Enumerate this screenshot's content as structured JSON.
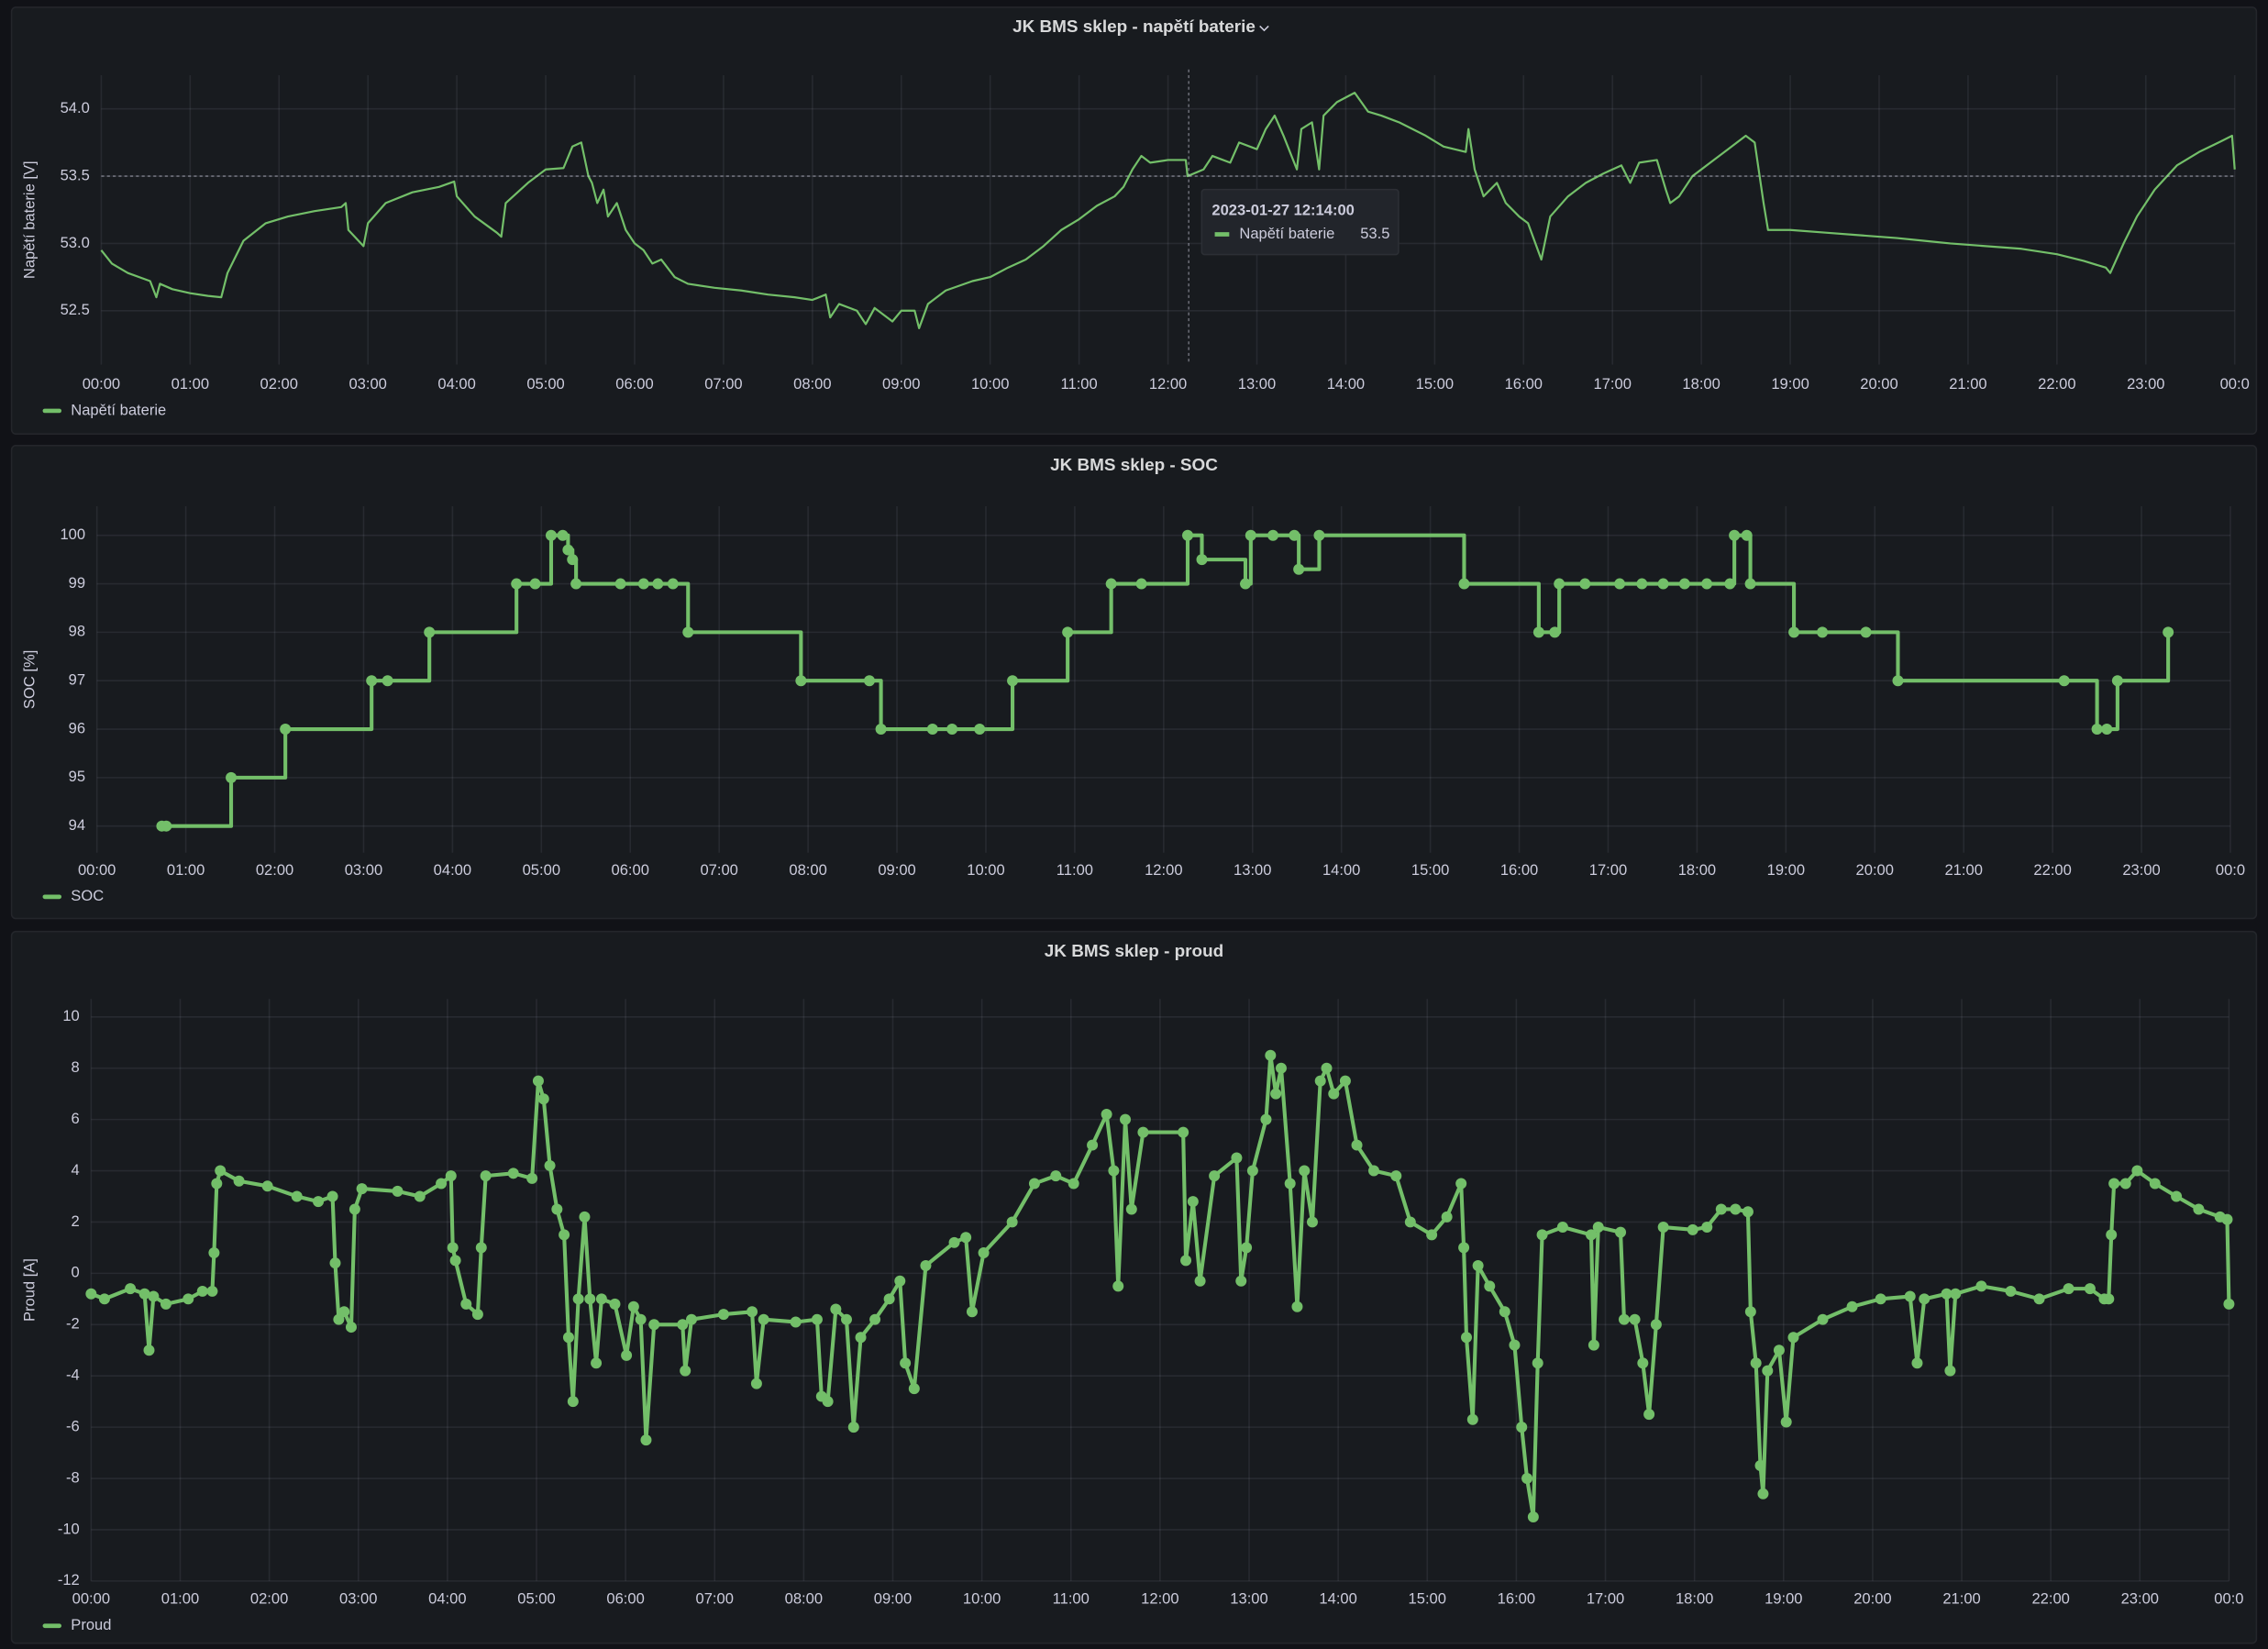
{
  "chart_data": [
    {
      "type": "line",
      "title": "JK BMS sklep - napětí baterie",
      "y_label": "Napětí baterie [V]",
      "line_interpolation": "linear",
      "points": false,
      "grid": true,
      "legend": "bottom-left",
      "x": [
        0,
        0.12,
        0.3,
        0.55,
        0.62,
        0.66,
        0.8,
        1,
        1.2,
        1.35,
        1.42,
        1.6,
        1.85,
        2.1,
        2.4,
        2.7,
        2.75,
        2.78,
        2.95,
        3,
        3.2,
        3.5,
        3.8,
        3.97,
        4,
        4.2,
        4.45,
        4.5,
        4.55,
        4.8,
        5,
        5.2,
        5.3,
        5.4,
        5.48,
        5.52,
        5.58,
        5.65,
        5.7,
        5.8,
        5.9,
        6,
        6.1,
        6.2,
        6.3,
        6.45,
        6.6,
        6.9,
        7.2,
        7.5,
        7.8,
        8,
        8.15,
        8.2,
        8.3,
        8.5,
        8.6,
        8.7,
        8.9,
        9,
        9.15,
        9.2,
        9.3,
        9.5,
        9.8,
        10,
        10.2,
        10.4,
        10.6,
        10.8,
        11,
        11.2,
        11.4,
        11.5,
        11.6,
        11.7,
        11.8,
        12,
        12.2,
        12.22,
        12.4,
        12.5,
        12.7,
        12.8,
        13,
        13.1,
        13.2,
        13.3,
        13.45,
        13.5,
        13.62,
        13.7,
        13.75,
        13.9,
        14.1,
        14.25,
        14.4,
        14.6,
        14.9,
        15.1,
        15.35,
        15.38,
        15.45,
        15.55,
        15.7,
        15.8,
        15.95,
        16.05,
        16.2,
        16.3,
        16.5,
        16.7,
        16.9,
        17.1,
        17.2,
        17.3,
        17.5,
        17.6,
        17.65,
        17.75,
        17.9,
        18.1,
        18.3,
        18.5,
        18.6,
        18.7,
        18.75,
        19,
        19.4,
        19.8,
        20.2,
        20.5,
        20.8,
        21.2,
        21.6,
        22,
        22.3,
        22.55,
        22.6,
        22.75,
        22.9,
        23.1,
        23.35,
        23.6,
        23.85,
        23.97,
        24
      ],
      "series": [
        {
          "name": "Napětí baterie",
          "color": "#73bf69",
          "values": [
            52.95,
            52.85,
            52.78,
            52.72,
            52.6,
            52.7,
            52.66,
            52.63,
            52.61,
            52.6,
            52.78,
            53.02,
            53.15,
            53.2,
            53.24,
            53.27,
            53.3,
            53.1,
            52.98,
            53.15,
            53.3,
            53.38,
            53.42,
            53.46,
            53.35,
            53.2,
            53.08,
            53.05,
            53.3,
            53.45,
            53.55,
            53.56,
            53.72,
            53.75,
            53.5,
            53.45,
            53.3,
            53.4,
            53.2,
            53.3,
            53.1,
            53.0,
            52.95,
            52.85,
            52.88,
            52.75,
            52.7,
            52.67,
            52.65,
            52.62,
            52.6,
            52.58,
            52.62,
            52.45,
            52.55,
            52.5,
            52.4,
            52.52,
            52.42,
            52.5,
            52.5,
            52.37,
            52.55,
            52.65,
            52.72,
            52.75,
            52.82,
            52.88,
            52.98,
            53.1,
            53.18,
            53.28,
            53.35,
            53.42,
            53.55,
            53.65,
            53.6,
            53.62,
            53.62,
            53.5,
            53.55,
            53.65,
            53.6,
            53.75,
            53.7,
            53.85,
            53.95,
            53.8,
            53.55,
            53.85,
            53.9,
            53.55,
            53.95,
            54.05,
            54.12,
            53.98,
            53.95,
            53.9,
            53.8,
            53.72,
            53.68,
            53.85,
            53.55,
            53.35,
            53.45,
            53.3,
            53.2,
            53.15,
            52.88,
            53.2,
            53.35,
            53.45,
            53.52,
            53.58,
            53.45,
            53.6,
            53.62,
            53.4,
            53.3,
            53.35,
            53.5,
            53.6,
            53.7,
            53.8,
            53.75,
            53.3,
            53.1,
            53.1,
            53.08,
            53.06,
            53.04,
            53.02,
            53.0,
            52.98,
            52.96,
            52.92,
            52.87,
            52.82,
            52.78,
            53.0,
            53.2,
            53.4,
            53.58,
            53.68,
            53.76,
            53.8,
            53.55
          ]
        }
      ],
      "xlim": [
        0,
        24
      ],
      "xticks": [
        {
          "value": 0,
          "label": "00:00"
        },
        {
          "value": 1,
          "label": "01:00"
        },
        {
          "value": 2,
          "label": "02:00"
        },
        {
          "value": 3,
          "label": "03:00"
        },
        {
          "value": 4,
          "label": "04:00"
        },
        {
          "value": 5,
          "label": "05:00"
        },
        {
          "value": 6,
          "label": "06:00"
        },
        {
          "value": 7,
          "label": "07:00"
        },
        {
          "value": 8,
          "label": "08:00"
        },
        {
          "value": 9,
          "label": "09:00"
        },
        {
          "value": 10,
          "label": "10:00"
        },
        {
          "value": 11,
          "label": "11:00"
        },
        {
          "value": 12,
          "label": "12:00"
        },
        {
          "value": 13,
          "label": "13:00"
        },
        {
          "value": 14,
          "label": "14:00"
        },
        {
          "value": 15,
          "label": "15:00"
        },
        {
          "value": 16,
          "label": "16:00"
        },
        {
          "value": 17,
          "label": "17:00"
        },
        {
          "value": 18,
          "label": "18:00"
        },
        {
          "value": 19,
          "label": "19:00"
        },
        {
          "value": 20,
          "label": "20:00"
        },
        {
          "value": 21,
          "label": "21:00"
        },
        {
          "value": 22,
          "label": "22:00"
        },
        {
          "value": 23,
          "label": "23:00"
        },
        {
          "value": 24,
          "label": "00:0"
        }
      ],
      "ylim": [
        52.1,
        54.25
      ],
      "yticks": [
        52.5,
        {
          "value": 53,
          "label": "53.0"
        },
        53.5,
        {
          "value": 54,
          "label": "54.0"
        }
      ],
      "tooltip": {
        "time": "2023-01-27 12:14:00",
        "series": "Napětí baterie",
        "value": 53.5
      }
    },
    {
      "type": "line",
      "title": "JK BMS sklep - SOC",
      "y_label": "SOC [%]",
      "line_interpolation": "stepAfter",
      "points": true,
      "grid": true,
      "legend": "bottom-left",
      "x": [
        0.73,
        0.78,
        1.51,
        2.12,
        3.09,
        3.27,
        3.74,
        4.72,
        4.93,
        5.11,
        5.24,
        5.3,
        5.35,
        5.39,
        5.89,
        6.15,
        6.31,
        6.48,
        6.65,
        7.92,
        8.69,
        8.82,
        9.4,
        9.62,
        9.93,
        10.3,
        10.92,
        11.41,
        11.75,
        12.27,
        12.43,
        12.92,
        12.98,
        13.23,
        13.47,
        13.52,
        13.75,
        15.38,
        16.22,
        16.4,
        16.45,
        16.74,
        17.13,
        17.38,
        17.62,
        17.86,
        18.11,
        18.37,
        18.42,
        18.56,
        18.6,
        19.09,
        19.41,
        19.9,
        20.26,
        22.13,
        22.5,
        22.61,
        22.73,
        23.3
      ],
      "series": [
        {
          "name": "SOC",
          "color": "#73bf69",
          "values": [
            94,
            94,
            95,
            96,
            97,
            97,
            98,
            99,
            99,
            100,
            100,
            99.7,
            99.5,
            99,
            99,
            99,
            99,
            99,
            98,
            97,
            97,
            96,
            96,
            96,
            96,
            97,
            98,
            99,
            99,
            100,
            99.5,
            99,
            100,
            100,
            100,
            99.3,
            100,
            99,
            98,
            98,
            99,
            99,
            99,
            99,
            99,
            99,
            99,
            99,
            100,
            100,
            99,
            98,
            98,
            98,
            97,
            97,
            96,
            96,
            97,
            98
          ]
        }
      ],
      "xlim": [
        0,
        24
      ],
      "xticks": [
        {
          "value": 0,
          "label": "00:00"
        },
        {
          "value": 1,
          "label": "01:00"
        },
        {
          "value": 2,
          "label": "02:00"
        },
        {
          "value": 3,
          "label": "03:00"
        },
        {
          "value": 4,
          "label": "04:00"
        },
        {
          "value": 5,
          "label": "05:00"
        },
        {
          "value": 6,
          "label": "06:00"
        },
        {
          "value": 7,
          "label": "07:00"
        },
        {
          "value": 8,
          "label": "08:00"
        },
        {
          "value": 9,
          "label": "09:00"
        },
        {
          "value": 10,
          "label": "10:00"
        },
        {
          "value": 11,
          "label": "11:00"
        },
        {
          "value": 12,
          "label": "12:00"
        },
        {
          "value": 13,
          "label": "13:00"
        },
        {
          "value": 14,
          "label": "14:00"
        },
        {
          "value": 15,
          "label": "15:00"
        },
        {
          "value": 16,
          "label": "16:00"
        },
        {
          "value": 17,
          "label": "17:00"
        },
        {
          "value": 18,
          "label": "18:00"
        },
        {
          "value": 19,
          "label": "19:00"
        },
        {
          "value": 20,
          "label": "20:00"
        },
        {
          "value": 21,
          "label": "21:00"
        },
        {
          "value": 22,
          "label": "22:00"
        },
        {
          "value": 23,
          "label": "23:00"
        },
        {
          "value": 24,
          "label": "00:0"
        }
      ],
      "ylim": [
        93.45,
        100.6
      ],
      "yticks": [
        94,
        95,
        96,
        97,
        98,
        99,
        100
      ]
    },
    {
      "type": "line",
      "title": "JK BMS sklep - proud",
      "y_label": "Proud [A]",
      "line_interpolation": "linear",
      "points": true,
      "grid": true,
      "legend": "bottom-left",
      "x": [
        0,
        0.15,
        0.44,
        0.6,
        0.65,
        0.7,
        0.84,
        1.09,
        1.25,
        1.36,
        1.38,
        1.41,
        1.45,
        1.66,
        1.98,
        2.31,
        2.55,
        2.71,
        2.74,
        2.78,
        2.84,
        2.92,
        2.96,
        3.04,
        3.44,
        3.69,
        3.93,
        4.04,
        4.06,
        4.09,
        4.21,
        4.34,
        4.38,
        4.43,
        4.74,
        4.95,
        5.02,
        5.08,
        5.15,
        5.23,
        5.31,
        5.36,
        5.41,
        5.47,
        5.54,
        5.6,
        5.67,
        5.73,
        5.88,
        6.01,
        6.09,
        6.17,
        6.23,
        6.32,
        6.64,
        6.67,
        6.74,
        7.1,
        7.42,
        7.47,
        7.55,
        7.91,
        8.15,
        8.2,
        8.27,
        8.36,
        8.48,
        8.56,
        8.64,
        8.8,
        8.96,
        9.08,
        9.14,
        9.24,
        9.37,
        9.69,
        9.82,
        9.89,
        10.02,
        10.34,
        10.59,
        10.83,
        11.03,
        11.24,
        11.4,
        11.48,
        11.53,
        11.61,
        11.68,
        11.81,
        12.26,
        12.29,
        12.37,
        12.45,
        12.61,
        12.86,
        12.91,
        12.97,
        13.04,
        13.19,
        13.24,
        13.3,
        13.36,
        13.46,
        13.54,
        13.62,
        13.71,
        13.8,
        13.87,
        13.95,
        14.08,
        14.21,
        14.4,
        14.65,
        14.81,
        15.05,
        15.22,
        15.38,
        15.41,
        15.44,
        15.51,
        15.57,
        15.7,
        15.87,
        15.98,
        16.06,
        16.12,
        16.19,
        16.24,
        16.29,
        16.52,
        16.84,
        16.87,
        16.92,
        17.17,
        17.21,
        17.33,
        17.42,
        17.49,
        17.57,
        17.65,
        17.98,
        18.14,
        18.3,
        18.46,
        18.6,
        18.63,
        18.69,
        18.74,
        18.77,
        18.82,
        18.95,
        19.03,
        19.11,
        19.44,
        19.77,
        20.09,
        20.42,
        20.5,
        20.58,
        20.83,
        20.87,
        20.93,
        21.22,
        21.55,
        21.87,
        22.2,
        22.44,
        22.6,
        22.65,
        22.68,
        22.71,
        22.84,
        22.97,
        23.17,
        23.41,
        23.66,
        23.9,
        23.98,
        24
      ],
      "series": [
        {
          "name": "Proud",
          "color": "#73bf69",
          "values": [
            -0.8,
            -1.0,
            -0.6,
            -0.8,
            -3.0,
            -0.9,
            -1.2,
            -1.0,
            -0.7,
            -0.7,
            0.8,
            3.5,
            4.0,
            3.6,
            3.4,
            3.0,
            2.8,
            3.0,
            0.4,
            -1.8,
            -1.5,
            -2.1,
            2.5,
            3.3,
            3.2,
            3.0,
            3.5,
            3.8,
            1.0,
            0.5,
            -1.2,
            -1.6,
            1.0,
            3.8,
            3.9,
            3.7,
            7.5,
            6.8,
            4.2,
            2.5,
            1.5,
            -2.5,
            -5.0,
            -1.0,
            2.2,
            -1.0,
            -3.5,
            -1.0,
            -1.2,
            -3.2,
            -1.3,
            -1.8,
            -6.5,
            -2.0,
            -2.0,
            -3.8,
            -1.8,
            -1.6,
            -1.5,
            -4.3,
            -1.8,
            -1.9,
            -1.8,
            -4.8,
            -5.0,
            -1.4,
            -1.8,
            -6.0,
            -2.5,
            -1.8,
            -1.0,
            -0.3,
            -3.5,
            -4.5,
            0.3,
            1.2,
            1.4,
            -1.5,
            0.8,
            2.0,
            3.5,
            3.8,
            3.5,
            5.0,
            6.2,
            4.0,
            -0.5,
            6.0,
            2.5,
            5.5,
            5.5,
            0.5,
            2.8,
            -0.3,
            3.8,
            4.5,
            -0.3,
            1.0,
            4.0,
            6.0,
            8.5,
            7.0,
            8.0,
            3.5,
            -1.3,
            4.0,
            2.0,
            7.5,
            8.0,
            7.0,
            7.5,
            5.0,
            4.0,
            3.8,
            2.0,
            1.5,
            2.2,
            3.5,
            1.0,
            -2.5,
            -5.7,
            0.3,
            -0.5,
            -1.5,
            -2.8,
            -6.0,
            -8.0,
            -9.5,
            -3.5,
            1.5,
            1.8,
            1.5,
            -2.8,
            1.8,
            1.6,
            -1.8,
            -1.8,
            -3.5,
            -5.5,
            -2.0,
            1.8,
            1.7,
            1.8,
            2.5,
            2.5,
            2.4,
            -1.5,
            -3.5,
            -7.5,
            -8.6,
            -3.8,
            -3.0,
            -5.8,
            -2.5,
            -1.8,
            -1.3,
            -1.0,
            -0.9,
            -3.5,
            -1.0,
            -0.8,
            -3.8,
            -0.8,
            -0.5,
            -0.7,
            -1.0,
            -0.6,
            -0.6,
            -1.0,
            -1.0,
            1.5,
            3.5,
            3.5,
            4.0,
            3.5,
            3.0,
            2.5,
            2.2,
            2.1,
            -1.2
          ]
        }
      ],
      "xlim": [
        0,
        24
      ],
      "xticks": [
        {
          "value": 0,
          "label": "00:00"
        },
        {
          "value": 1,
          "label": "01:00"
        },
        {
          "value": 2,
          "label": "02:00"
        },
        {
          "value": 3,
          "label": "03:00"
        },
        {
          "value": 4,
          "label": "04:00"
        },
        {
          "value": 5,
          "label": "05:00"
        },
        {
          "value": 6,
          "label": "06:00"
        },
        {
          "value": 7,
          "label": "07:00"
        },
        {
          "value": 8,
          "label": "08:00"
        },
        {
          "value": 9,
          "label": "09:00"
        },
        {
          "value": 10,
          "label": "10:00"
        },
        {
          "value": 11,
          "label": "11:00"
        },
        {
          "value": 12,
          "label": "12:00"
        },
        {
          "value": 13,
          "label": "13:00"
        },
        {
          "value": 14,
          "label": "14:00"
        },
        {
          "value": 15,
          "label": "15:00"
        },
        {
          "value": 16,
          "label": "16:00"
        },
        {
          "value": 17,
          "label": "17:00"
        },
        {
          "value": 18,
          "label": "18:00"
        },
        {
          "value": 19,
          "label": "19:00"
        },
        {
          "value": 20,
          "label": "20:00"
        },
        {
          "value": 21,
          "label": "21:00"
        },
        {
          "value": 22,
          "label": "22:00"
        },
        {
          "value": 23,
          "label": "23:00"
        },
        {
          "value": 24,
          "label": "00:0"
        }
      ],
      "ylim": [
        -12,
        10.7
      ],
      "yticks": [
        -12,
        -10,
        -8,
        -6,
        -4,
        -2,
        0,
        2,
        4,
        6,
        8,
        10
      ]
    }
  ]
}
